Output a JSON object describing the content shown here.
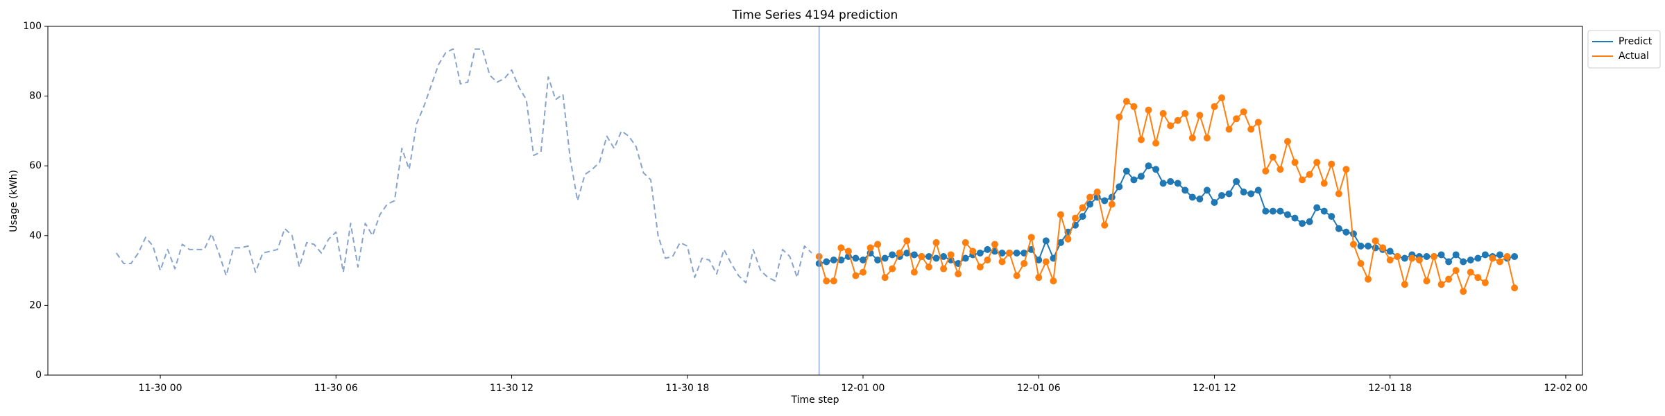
{
  "chart_data": {
    "type": "line",
    "title": "Time Series 4194 prediction",
    "x_label": "Time step",
    "y_label": "Usage (kWh)",
    "xlim": [
      -3.84,
      48.57
    ],
    "ylim": [
      0,
      100
    ],
    "xticks": [
      {
        "value": 0,
        "label": "11-30 00"
      },
      {
        "value": 6,
        "label": "11-30 06"
      },
      {
        "value": 12,
        "label": "11-30 12"
      },
      {
        "value": 18,
        "label": "11-30 18"
      },
      {
        "value": 24,
        "label": "12-01 00"
      },
      {
        "value": 30,
        "label": "12-01 06"
      },
      {
        "value": 36,
        "label": "12-01 12"
      },
      {
        "value": 42,
        "label": "12-01 18"
      },
      {
        "value": 48,
        "label": "12-02 00"
      }
    ],
    "yticks": [
      0,
      20,
      40,
      60,
      80,
      100
    ],
    "vline": 22.5,
    "vline_color": "#8fa8d4",
    "legend": "upper-right-outside",
    "series": [
      {
        "color": "#86a3cc",
        "dashed": true,
        "markers": false,
        "x": [
          -1.5,
          -1.25,
          -1,
          -0.75,
          -0.5,
          -0.25,
          0,
          0.25,
          0.5,
          0.75,
          1,
          1.25,
          1.5,
          1.75,
          2,
          2.25,
          2.5,
          2.75,
          3,
          3.25,
          3.5,
          3.75,
          4,
          4.25,
          4.5,
          4.75,
          5,
          5.25,
          5.5,
          5.75,
          6,
          6.25,
          6.5,
          6.75,
          7,
          7.25,
          7.5,
          7.75,
          8,
          8.25,
          8.5,
          8.75,
          9,
          9.25,
          9.5,
          9.75,
          10,
          10.25,
          10.5,
          10.75,
          11,
          11.25,
          11.5,
          11.75,
          12,
          12.25,
          12.5,
          12.75,
          13,
          13.25,
          13.5,
          13.75,
          14,
          14.25,
          14.5,
          14.75,
          15,
          15.25,
          15.5,
          15.75,
          16,
          16.25,
          16.5,
          16.75,
          17,
          17.25,
          17.5,
          17.75,
          18,
          18.25,
          18.5,
          18.75,
          19,
          19.25,
          19.5,
          19.75,
          20,
          20.25,
          20.5,
          20.75,
          21,
          21.25,
          21.5,
          21.75,
          22,
          22.25
        ],
        "values": [
          35,
          32,
          32,
          35,
          39.5,
          37,
          30,
          36,
          30.5,
          37.5,
          36,
          36,
          36,
          40.5,
          35,
          28.5,
          36.5,
          36.5,
          37,
          29.5,
          35,
          35.5,
          36,
          42,
          40,
          31,
          38,
          37.5,
          35,
          39,
          41,
          29.5,
          43.5,
          31,
          43.5,
          40,
          46,
          49,
          50,
          65,
          59,
          72,
          77,
          83,
          89,
          92.5,
          93.5,
          83.5,
          84,
          93.5,
          93.5,
          86,
          84,
          85,
          87.5,
          82.5,
          79,
          63,
          64,
          85.5,
          79,
          80.5,
          62,
          50,
          57.5,
          59,
          61,
          68.5,
          65,
          70,
          68.5,
          65.5,
          58,
          56,
          40,
          33.5,
          34,
          38,
          37,
          28,
          33.5,
          33,
          29,
          36,
          32,
          28.5,
          26.5,
          36,
          30,
          28,
          27,
          36,
          34,
          28,
          37,
          35
        ]
      },
      {
        "name": "Predict",
        "color": "#1f77b4",
        "dashed": false,
        "markers": true,
        "x": [
          22.5,
          22.75,
          23,
          23.25,
          23.5,
          23.75,
          24,
          24.25,
          24.5,
          24.75,
          25,
          25.25,
          25.5,
          25.75,
          26,
          26.25,
          26.5,
          26.75,
          27,
          27.25,
          27.5,
          27.75,
          28,
          28.25,
          28.5,
          28.75,
          29,
          29.25,
          29.5,
          29.75,
          30,
          30.25,
          30.5,
          30.75,
          31,
          31.25,
          31.5,
          31.75,
          32,
          32.25,
          32.5,
          32.75,
          33,
          33.25,
          33.5,
          33.75,
          34,
          34.25,
          34.5,
          34.75,
          35,
          35.25,
          35.5,
          35.75,
          36,
          36.25,
          36.5,
          36.75,
          37,
          37.25,
          37.5,
          37.75,
          38,
          38.25,
          38.5,
          38.75,
          39,
          39.25,
          39.5,
          39.75,
          40,
          40.25,
          40.5,
          40.75,
          41,
          41.25,
          41.5,
          41.75,
          42,
          42.25,
          42.5,
          42.75,
          43,
          43.25,
          43.5,
          43.75,
          44,
          44.25,
          44.5,
          44.75,
          45,
          45.25,
          45.5,
          45.75,
          46,
          46.25
        ],
        "values": [
          32,
          32.5,
          33,
          33,
          34,
          33.5,
          33,
          35,
          33,
          33.5,
          34.5,
          34,
          35,
          34.5,
          34,
          34,
          33.5,
          34,
          33,
          32,
          33.5,
          34.5,
          35,
          36,
          35.5,
          35,
          35,
          35,
          35,
          36,
          33,
          38.5,
          33.5,
          38,
          41,
          43,
          45.5,
          49,
          51,
          50,
          51,
          54,
          58.5,
          56,
          57,
          60,
          59,
          55,
          55.5,
          55,
          53,
          51,
          50.5,
          53,
          49.5,
          51.5,
          52,
          55.5,
          52.5,
          52,
          53,
          47,
          47,
          47,
          46,
          45,
          43.5,
          44,
          48,
          47,
          45.5,
          42,
          41,
          40.5,
          37,
          37,
          36.5,
          36,
          35.5,
          34,
          33.5,
          34.5,
          34,
          34,
          34,
          34.5,
          32.5,
          34.5,
          32.5,
          33,
          33.5,
          34.5,
          34,
          34.5,
          33.5,
          34
        ]
      },
      {
        "name": "Actual",
        "color": "#ff7f0e",
        "dashed": false,
        "markers": true,
        "x": [
          22.5,
          22.75,
          23,
          23.25,
          23.5,
          23.75,
          24,
          24.25,
          24.5,
          24.75,
          25,
          25.25,
          25.5,
          25.75,
          26,
          26.25,
          26.5,
          26.75,
          27,
          27.25,
          27.5,
          27.75,
          28,
          28.25,
          28.5,
          28.75,
          29,
          29.25,
          29.5,
          29.75,
          30,
          30.25,
          30.5,
          30.75,
          31,
          31.25,
          31.5,
          31.75,
          32,
          32.25,
          32.5,
          32.75,
          33,
          33.25,
          33.5,
          33.75,
          34,
          34.25,
          34.5,
          34.75,
          35,
          35.25,
          35.5,
          35.75,
          36,
          36.25,
          36.5,
          36.75,
          37,
          37.25,
          37.5,
          37.75,
          38,
          38.25,
          38.5,
          38.75,
          39,
          39.25,
          39.5,
          39.75,
          40,
          40.25,
          40.5,
          40.75,
          41,
          41.25,
          41.5,
          41.75,
          42,
          42.25,
          42.5,
          42.75,
          43,
          43.25,
          43.5,
          43.75,
          44,
          44.25,
          44.5,
          44.75,
          45,
          45.25,
          45.5,
          45.75,
          46,
          46.25
        ],
        "values": [
          34,
          27,
          27,
          36.5,
          35.5,
          28.5,
          29.5,
          36.5,
          37.5,
          28,
          30.5,
          35,
          38.5,
          29.5,
          34,
          31,
          38,
          30.5,
          34.5,
          29,
          38,
          35.5,
          31,
          33,
          37.5,
          32.5,
          35,
          28.5,
          32,
          39.5,
          28,
          32.5,
          27,
          46,
          39,
          45,
          48,
          51,
          52.5,
          43,
          49,
          74,
          78.5,
          77,
          67.5,
          76,
          66.5,
          75,
          71.5,
          73,
          75,
          68,
          74.5,
          68,
          77,
          79.5,
          70.5,
          73.5,
          75.5,
          70.5,
          72.5,
          58.5,
          62.5,
          59,
          67,
          61,
          56,
          57.5,
          61,
          55,
          60.5,
          52,
          59,
          37.5,
          32,
          27.5,
          38.5,
          36.5,
          33,
          34,
          26,
          33.5,
          33,
          27,
          34,
          26,
          27.5,
          30,
          24,
          29.5,
          28,
          26.5,
          33.5,
          32.5,
          34,
          25
        ]
      }
    ]
  }
}
